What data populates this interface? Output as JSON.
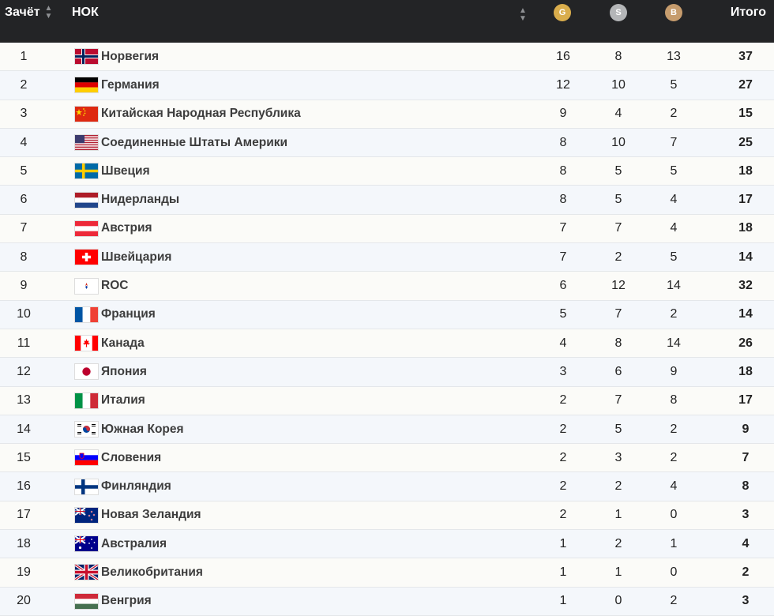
{
  "header": {
    "rank_label": "Зачёт",
    "noc_label": "НОК",
    "gold_letter": "G",
    "silver_letter": "S",
    "bronze_letter": "B",
    "total_label": "Итого",
    "sort_icon": "sort-arrows-icon"
  },
  "rows": [
    {
      "rank": "1",
      "name": "Норвегия",
      "flag": "norway",
      "g": "16",
      "s": "8",
      "b": "13",
      "t": "37"
    },
    {
      "rank": "2",
      "name": "Германия",
      "flag": "germany",
      "g": "12",
      "s": "10",
      "b": "5",
      "t": "27"
    },
    {
      "rank": "3",
      "name": "Китайская Народная Республика",
      "flag": "china",
      "g": "9",
      "s": "4",
      "b": "2",
      "t": "15"
    },
    {
      "rank": "4",
      "name": "Соединенные Штаты Америки",
      "flag": "usa",
      "g": "8",
      "s": "10",
      "b": "7",
      "t": "25"
    },
    {
      "rank": "5",
      "name": "Швеция",
      "flag": "sweden",
      "g": "8",
      "s": "5",
      "b": "5",
      "t": "18"
    },
    {
      "rank": "6",
      "name": "Нидерланды",
      "flag": "netherlands",
      "g": "8",
      "s": "5",
      "b": "4",
      "t": "17"
    },
    {
      "rank": "7",
      "name": "Австрия",
      "flag": "austria",
      "g": "7",
      "s": "7",
      "b": "4",
      "t": "18"
    },
    {
      "rank": "8",
      "name": "Швейцария",
      "flag": "switzerland",
      "g": "7",
      "s": "2",
      "b": "5",
      "t": "14"
    },
    {
      "rank": "9",
      "name": "ROC",
      "flag": "roc",
      "g": "6",
      "s": "12",
      "b": "14",
      "t": "32"
    },
    {
      "rank": "10",
      "name": "Франция",
      "flag": "france",
      "g": "5",
      "s": "7",
      "b": "2",
      "t": "14"
    },
    {
      "rank": "11",
      "name": "Канада",
      "flag": "canada",
      "g": "4",
      "s": "8",
      "b": "14",
      "t": "26"
    },
    {
      "rank": "12",
      "name": "Япония",
      "flag": "japan",
      "g": "3",
      "s": "6",
      "b": "9",
      "t": "18"
    },
    {
      "rank": "13",
      "name": "Италия",
      "flag": "italy",
      "g": "2",
      "s": "7",
      "b": "8",
      "t": "17"
    },
    {
      "rank": "14",
      "name": "Южная Корея",
      "flag": "south-korea",
      "g": "2",
      "s": "5",
      "b": "2",
      "t": "9"
    },
    {
      "rank": "15",
      "name": "Словения",
      "flag": "slovenia",
      "g": "2",
      "s": "3",
      "b": "2",
      "t": "7"
    },
    {
      "rank": "16",
      "name": "Финляндия",
      "flag": "finland",
      "g": "2",
      "s": "2",
      "b": "4",
      "t": "8"
    },
    {
      "rank": "17",
      "name": "Новая Зеландия",
      "flag": "new-zealand",
      "g": "2",
      "s": "1",
      "b": "0",
      "t": "3"
    },
    {
      "rank": "18",
      "name": "Австралия",
      "flag": "australia",
      "g": "1",
      "s": "2",
      "b": "1",
      "t": "4"
    },
    {
      "rank": "19",
      "name": "Великобритания",
      "flag": "great-britain",
      "g": "1",
      "s": "1",
      "b": "0",
      "t": "2"
    },
    {
      "rank": "20",
      "name": "Венгрия",
      "flag": "hungary",
      "g": "1",
      "s": "0",
      "b": "2",
      "t": "3"
    }
  ]
}
